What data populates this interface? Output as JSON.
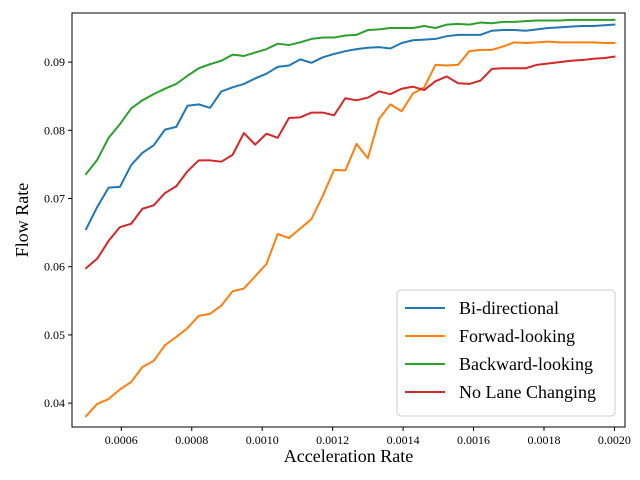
{
  "chart_data": {
    "type": "line",
    "title": "",
    "xlabel": "Acceleration Rate",
    "ylabel": "Flow Rate",
    "xlim": [
      0.00046,
      0.00203
    ],
    "ylim": [
      0.0365,
      0.0972
    ],
    "xticks": [
      0.0006,
      0.0008,
      0.001,
      0.0012,
      0.0014,
      0.0016,
      0.0018,
      0.002
    ],
    "xtick_labels": [
      "0.0006",
      "0.0008",
      "0.0010",
      "0.0012",
      "0.0014",
      "0.0016",
      "0.0018",
      "0.0020"
    ],
    "yticks": [
      0.04,
      0.05,
      0.06,
      0.07,
      0.08,
      0.09
    ],
    "ytick_labels": [
      "0.04",
      "0.05",
      "0.06",
      "0.07",
      "0.08",
      "0.09"
    ],
    "grid": false,
    "legend_position": "bottom-right",
    "x": [
      0.0005,
      0.000532,
      0.000564,
      0.000596,
      0.000628,
      0.00066,
      0.000692,
      0.000724,
      0.000756,
      0.000788,
      0.00082,
      0.000852,
      0.000884,
      0.000916,
      0.000948,
      0.00098,
      0.001012,
      0.001044,
      0.001076,
      0.001108,
      0.00114,
      0.001172,
      0.001204,
      0.001236,
      0.001268,
      0.0013,
      0.001332,
      0.001364,
      0.001396,
      0.001428,
      0.00146,
      0.001492,
      0.001524,
      0.001556,
      0.001588,
      0.00162,
      0.001652,
      0.001684,
      0.001716,
      0.001748,
      0.00178,
      0.001812,
      0.001844,
      0.001876,
      0.001908,
      0.00194,
      0.001972,
      0.002
    ],
    "series": [
      {
        "name": "Bi-directional",
        "color": "#1f77b4",
        "values": [
          0.0655,
          0.0688,
          0.0716,
          0.0717,
          0.0749,
          0.0767,
          0.0778,
          0.0801,
          0.0805,
          0.0836,
          0.0838,
          0.0833,
          0.0857,
          0.0863,
          0.0868,
          0.0876,
          0.0883,
          0.0893,
          0.0895,
          0.0904,
          0.0899,
          0.0907,
          0.0912,
          0.0916,
          0.0919,
          0.0921,
          0.0922,
          0.092,
          0.0928,
          0.0932,
          0.0933,
          0.0934,
          0.0938,
          0.094,
          0.094,
          0.094,
          0.0946,
          0.0947,
          0.0947,
          0.0946,
          0.0948,
          0.095,
          0.0951,
          0.0952,
          0.0953,
          0.0953,
          0.0954,
          0.0955
        ]
      },
      {
        "name": "Forwad-looking",
        "color": "#ff7f0e",
        "values": [
          0.0381,
          0.0399,
          0.0406,
          0.042,
          0.0431,
          0.0453,
          0.0462,
          0.0485,
          0.0497,
          0.051,
          0.0528,
          0.0531,
          0.0543,
          0.0564,
          0.0568,
          0.0586,
          0.0604,
          0.0648,
          0.0642,
          0.0656,
          0.067,
          0.0704,
          0.0742,
          0.0741,
          0.078,
          0.0759,
          0.0817,
          0.0838,
          0.0828,
          0.0854,
          0.0863,
          0.0896,
          0.0895,
          0.0896,
          0.0916,
          0.0918,
          0.0918,
          0.0923,
          0.0929,
          0.0928,
          0.0929,
          0.093,
          0.0929,
          0.0929,
          0.0929,
          0.0929,
          0.0928,
          0.0928
        ]
      },
      {
        "name": "Backward-looking",
        "color": "#2ca02c",
        "values": [
          0.0736,
          0.0757,
          0.0789,
          0.0809,
          0.0832,
          0.0844,
          0.0853,
          0.0861,
          0.0868,
          0.088,
          0.0891,
          0.0897,
          0.0902,
          0.0911,
          0.0909,
          0.0914,
          0.0919,
          0.0927,
          0.0925,
          0.0929,
          0.0934,
          0.0936,
          0.0936,
          0.0939,
          0.094,
          0.0947,
          0.0948,
          0.095,
          0.095,
          0.095,
          0.0953,
          0.095,
          0.0955,
          0.0956,
          0.0955,
          0.0958,
          0.0957,
          0.0959,
          0.0959,
          0.096,
          0.0961,
          0.0961,
          0.0961,
          0.0962,
          0.0962,
          0.0962,
          0.0962,
          0.0962
        ]
      },
      {
        "name": "No Lane Changing",
        "color": "#d62728",
        "values": [
          0.0598,
          0.0612,
          0.0638,
          0.0658,
          0.0663,
          0.0685,
          0.069,
          0.0708,
          0.0718,
          0.074,
          0.0756,
          0.0756,
          0.0754,
          0.0764,
          0.0796,
          0.0779,
          0.0795,
          0.0789,
          0.0818,
          0.0819,
          0.0826,
          0.0826,
          0.0822,
          0.0847,
          0.0844,
          0.0848,
          0.0857,
          0.0853,
          0.0861,
          0.0864,
          0.0859,
          0.0872,
          0.0879,
          0.0869,
          0.0868,
          0.0873,
          0.089,
          0.0891,
          0.0891,
          0.0891,
          0.0896,
          0.0898,
          0.09,
          0.0902,
          0.0903,
          0.0905,
          0.0906,
          0.0908
        ]
      }
    ]
  }
}
